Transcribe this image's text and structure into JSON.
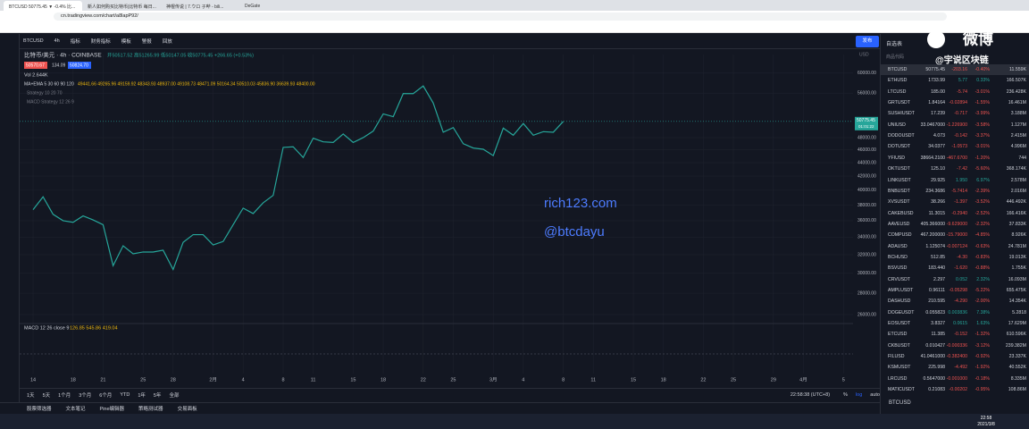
{
  "browser": {
    "tabs": [
      "BTCUSD 50775.45 ▼ -0.4% 比...",
      "新人如何购买比特币|比特币 每日...",
      "神棍传说 | 7.ウロ 子哔 - bili...",
      "DeGate"
    ],
    "url": "cn.tradingview.com/chart/a8lapP92/"
  },
  "toolbar": {
    "symbol": "BTCUSD",
    "interval": "4h",
    "items": [
      "指标",
      "财务指标",
      "模板",
      "警报",
      "回放"
    ],
    "publish": "发布",
    "watchlist": "自选表"
  },
  "legend": {
    "title": "比特币/美元 · 4h · COINBASE",
    "ohlc": "开50517.52 高51265.99 低50147.05 收50775.45 +266.65 (+0.53%)",
    "sell": "50570.67",
    "spread": "134.09",
    "buy": "50824.70",
    "vol": "Vol 2.644K",
    "ma": "MA+EMA 5 30 60 90 120",
    "ma_values": "49441.66 49265.96 49159.92 48343.93 48937.00 49108.73 48471.09 50164.34 50510.03 45836.90 36639.93 48400.00",
    "strategy": "Strategy 10 20 70",
    "macd_strategy": "MACD Strategy 12 26 9"
  },
  "chart_data": {
    "type": "line",
    "color": "#26a69a",
    "log": true,
    "grid": true,
    "x": [
      13,
      14,
      15,
      16,
      17,
      18,
      19,
      20,
      21,
      22,
      23,
      24,
      25,
      26,
      27,
      28,
      29,
      30,
      31,
      32,
      33,
      34,
      35,
      36,
      37,
      38,
      39,
      40,
      41,
      42,
      43,
      44,
      45,
      46,
      47,
      48,
      49,
      50,
      51,
      52,
      53,
      54,
      55,
      56,
      57,
      58,
      59,
      60,
      61,
      62,
      63,
      64,
      65,
      66
    ],
    "values": [
      37400,
      39100,
      36800,
      36000,
      35800,
      36600,
      36100,
      35500,
      30800,
      33000,
      32100,
      32300,
      32300,
      32500,
      30400,
      33400,
      34300,
      34300,
      33100,
      33500,
      35500,
      37600,
      36900,
      38300,
      39300,
      46400,
      46500,
      44800,
      47900,
      47300,
      47200,
      48600,
      47200,
      48000,
      49100,
      52100,
      51600,
      55900,
      55900,
      57400,
      54100,
      48900,
      49700,
      47000,
      46300,
      46100,
      45100,
      49600,
      48400,
      50400,
      48400,
      49000,
      48900,
      50775.45
    ],
    "xlim": [
      11.66,
      94.96
    ],
    "xticks": [
      {
        "value": 13,
        "label": "14"
      },
      {
        "value": 17,
        "label": "18"
      },
      {
        "value": 20,
        "label": "21"
      },
      {
        "value": 24,
        "label": "25"
      },
      {
        "value": 27,
        "label": "28"
      },
      {
        "value": 31,
        "label": "2月"
      },
      {
        "value": 34,
        "label": "4"
      },
      {
        "value": 38,
        "label": "8"
      },
      {
        "value": 41,
        "label": "11"
      },
      {
        "value": 45,
        "label": "15"
      },
      {
        "value": 48,
        "label": "18"
      },
      {
        "value": 52,
        "label": "22"
      },
      {
        "value": 55,
        "label": "25"
      },
      {
        "value": 59,
        "label": "3月"
      },
      {
        "value": 62,
        "label": "4"
      },
      {
        "value": 66,
        "label": "8"
      },
      {
        "value": 69,
        "label": "11"
      },
      {
        "value": 73,
        "label": "15"
      },
      {
        "value": 76,
        "label": "18"
      },
      {
        "value": 80,
        "label": "22"
      },
      {
        "value": 83,
        "label": "25"
      },
      {
        "value": 87,
        "label": "29"
      },
      {
        "value": 90,
        "label": "4月"
      },
      {
        "value": 94,
        "label": "5"
      }
    ],
    "ylim": [
      25370,
      64000
    ],
    "yticks": [
      {
        "value": 60000,
        "label": "60000.00"
      },
      {
        "value": 56000,
        "label": "56000.00"
      },
      {
        "value": 48000,
        "label": "48000.00"
      },
      {
        "value": 46000,
        "label": "46000.00"
      },
      {
        "value": 44000,
        "label": "44000.00"
      },
      {
        "value": 42000,
        "label": "42000.00"
      },
      {
        "value": 40000,
        "label": "40000.00"
      },
      {
        "value": 38000,
        "label": "38000.00"
      },
      {
        "value": 36000,
        "label": "36000.00"
      },
      {
        "value": 34000,
        "label": "34000.00"
      },
      {
        "value": 32000,
        "label": "32000.00"
      },
      {
        "value": 30000,
        "label": "30000.00"
      },
      {
        "value": 28000,
        "label": "28000.00"
      },
      {
        "value": 26000,
        "label": "26000.00"
      }
    ],
    "price_tag": "50775.45",
    "countdown": "01:01:22",
    "currency": "USD"
  },
  "macd": {
    "label": "MACD 12 26 close 9",
    "values": "126.85 545.86 419.04"
  },
  "watermark": [
    "rich123.com",
    "@btcdayu"
  ],
  "weibo": {
    "logo": "微博",
    "handle": "@宇说区块链"
  },
  "watchlist": {
    "header": "商品代码",
    "rows": [
      [
        "BTCUSD",
        "50775.45",
        "-203.16",
        "-0.40%",
        "11.559K"
      ],
      [
        "ETHUSD",
        "1733.99",
        "5.77",
        "0.33%",
        "166.507K"
      ],
      [
        "LTCUSD",
        "185.00",
        "-5.74",
        "-3.01%",
        "236.428K"
      ],
      [
        "GRTUSDT",
        "1.84164",
        "-0.02894",
        "-1.55%",
        "16.461M"
      ],
      [
        "SUSHIUSDT",
        "17.239",
        "-0.717",
        "-3.99%",
        "3.188M"
      ],
      [
        "UNIUSD",
        "33.0467000",
        "-1.226900",
        "-3.58%",
        "1.127M"
      ],
      [
        "DODOUSDT",
        "4.073",
        "-0.142",
        "-3.37%",
        "2.415M"
      ],
      [
        "DOTUSDT",
        "34.0377",
        "-1.0573",
        "-3.01%",
        "4.996M"
      ],
      [
        "YFIUSD",
        "38664.2100",
        "-467.6700",
        "-1.20%",
        "744"
      ],
      [
        "OKTUSDT",
        "125.10",
        "-7.42",
        "-5.60%",
        "368.174K"
      ],
      [
        "LINKUSDT",
        "29.925",
        "1.950",
        "6.97%",
        "2.578M"
      ],
      [
        "BNBUSDT",
        "234.3686",
        "-5.7414",
        "-2.39%",
        "2.016M"
      ],
      [
        "XVSUSDT",
        "38.266",
        "-1.397",
        "-3.52%",
        "446.492K"
      ],
      [
        "CAKEBUSD",
        "11.3015",
        "-0.2940",
        "-2.52%",
        "166.416K"
      ],
      [
        "AAVEUSD",
        "405.366000",
        "-9.629000",
        "-2.32%",
        "37.833K"
      ],
      [
        "COMPUSD",
        "467.200000",
        "-15.79000",
        "-4.85%",
        "8.926K"
      ],
      [
        "ADAUSD",
        "1.125074",
        "-0.007124",
        "-0.63%",
        "24.781M"
      ],
      [
        "BCHUSD",
        "512.85",
        "-4.30",
        "-0.83%",
        "19.013K"
      ],
      [
        "BSVUSD",
        "183.440",
        "-1.620",
        "-0.88%",
        "1.755K"
      ],
      [
        "CRVUSDT",
        "2.297",
        "0.052",
        "2.32%",
        "16.093M"
      ],
      [
        "AMPLUSDT",
        "0.96111",
        "-0.05298",
        "-5.22%",
        "655.475K"
      ],
      [
        "DASHUSD",
        "210.595",
        "-4.290",
        "-2.00%",
        "14.354K"
      ],
      [
        "DOGEUSDT",
        "0.055823",
        "0.003836",
        "7.38%",
        "5.2818"
      ],
      [
        "EOSUSDT",
        "3.8327",
        "0.0615",
        "1.63%",
        "17.629M"
      ],
      [
        "ETCUSD",
        "11.385",
        "-0.152",
        "-1.32%",
        "610.596K"
      ],
      [
        "CKBUSDT",
        "0.010427",
        "-0.000336",
        "-3.12%",
        "239.382M"
      ],
      [
        "FILUSD",
        "41.0461000",
        "-0.382400",
        "-0.92%",
        "23.337K"
      ],
      [
        "KSMUSDT",
        "225.998",
        "-4.492",
        "-1.92%",
        "40.552K"
      ],
      [
        "LRCUSD",
        "0.5647000",
        "-0.001000",
        "-0.18%",
        "8.335M"
      ],
      [
        "MATICUSDT",
        "0.21083",
        "-0.00202",
        "-0.95%",
        "108.86M"
      ]
    ]
  },
  "range_bar": [
    "1天",
    "5天",
    "1个月",
    "3个月",
    "6个月",
    "YTD",
    "1年",
    "5年",
    "全部"
  ],
  "clock": "22:58:38 (UTC+8)",
  "scale_opts": [
    "%",
    "log",
    "auto"
  ],
  "bottom_tabs": [
    "股票筛选器",
    "文本笔记",
    "Pine编辑器",
    "策略测试器",
    "交易面板"
  ],
  "footer_symbol": "BTCUSD",
  "taskbar": {
    "time": "22:58",
    "date": "2021/3/8"
  }
}
